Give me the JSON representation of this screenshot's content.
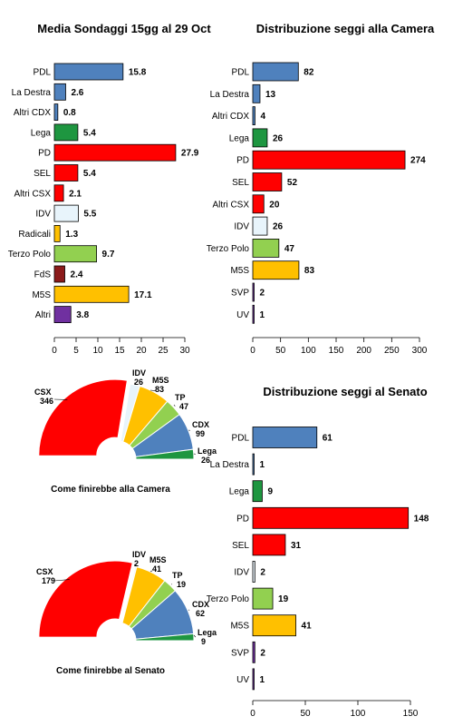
{
  "chart_data": [
    {
      "type": "bar",
      "orientation": "horizontal",
      "title": "Media Sondaggi 15gg al 29 Oct",
      "categories": [
        "PDL",
        "La Destra",
        "Altri CDX",
        "Lega",
        "PD",
        "SEL",
        "Altri CSX",
        "IDV",
        "Radicali",
        "Terzo Polo",
        "FdS",
        "M5S",
        "Altri"
      ],
      "values": [
        15.8,
        2.6,
        0.8,
        5.4,
        27.9,
        5.4,
        2.1,
        5.5,
        1.3,
        9.7,
        2.4,
        17.1,
        3.8
      ],
      "value_labels": [
        "15.8",
        "2.6",
        "0.8",
        "5.4",
        "27.9",
        "5.4",
        "2.1",
        "5.5",
        "1.3",
        "9.7",
        "2.4",
        "17.1",
        "3.8"
      ],
      "colors": [
        "#4f81bd",
        "#4f81bd",
        "#4f81bd",
        "#1e9640",
        "#ff0000",
        "#ff0000",
        "#ff0000",
        "#e8f4fb",
        "#ffc000",
        "#92d050",
        "#8b1a1a",
        "#ffc000",
        "#7030a0"
      ],
      "xlim": [
        0,
        30
      ],
      "xticks": [
        "0",
        "5",
        "10",
        "15",
        "20",
        "25",
        "30"
      ]
    },
    {
      "type": "bar",
      "orientation": "horizontal",
      "title": "Distribuzione seggi alla Camera",
      "categories": [
        "PDL",
        "La Destra",
        "Altri CDX",
        "Lega",
        "PD",
        "SEL",
        "Altri CSX",
        "IDV",
        "Terzo Polo",
        "M5S",
        "SVP",
        "UV"
      ],
      "values": [
        82,
        13,
        4,
        26,
        274,
        52,
        20,
        26,
        47,
        83,
        2,
        1
      ],
      "value_labels": [
        "82",
        "13",
        "4",
        "26",
        "274",
        "52",
        "20",
        "26",
        "47",
        "83",
        "2",
        "1"
      ],
      "colors": [
        "#4f81bd",
        "#4f81bd",
        "#4f81bd",
        "#1e9640",
        "#ff0000",
        "#ff0000",
        "#ff0000",
        "#e8f4fb",
        "#92d050",
        "#ffc000",
        "#7030a0",
        "#7030a0"
      ],
      "xlim": [
        0,
        300
      ],
      "xticks": [
        "0",
        "50",
        "100",
        "150",
        "200",
        "250",
        "300"
      ]
    },
    {
      "type": "bar",
      "orientation": "horizontal",
      "title": "Distribuzione seggi al Senato",
      "categories": [
        "PDL",
        "La Destra",
        "Lega",
        "PD",
        "SEL",
        "IDV",
        "Terzo Polo",
        "M5S",
        "SVP",
        "UV"
      ],
      "values": [
        61,
        1,
        9,
        148,
        31,
        2,
        19,
        41,
        2,
        1
      ],
      "value_labels": [
        "61",
        "1",
        "9",
        "148",
        "31",
        "2",
        "19",
        "41",
        "2",
        "1"
      ],
      "colors": [
        "#4f81bd",
        "#4f81bd",
        "#1e9640",
        "#ff0000",
        "#ff0000",
        "#e8f4fb",
        "#92d050",
        "#ffc000",
        "#7030a0",
        "#7030a0"
      ],
      "xlim": [
        0,
        150
      ],
      "xticks": [
        "0",
        "50",
        "100",
        "150"
      ]
    },
    {
      "type": "pie",
      "subtype": "semicircle",
      "title": "Come finirebbe alla Camera",
      "slices": [
        {
          "name": "CSX",
          "value": 346,
          "color": "#ff0000"
        },
        {
          "name": "IDV",
          "value": 26,
          "color": "#e8f4fb"
        },
        {
          "name": "M5S",
          "value": 83,
          "color": "#ffc000"
        },
        {
          "name": "TP",
          "value": 47,
          "color": "#92d050"
        },
        {
          "name": "CDX",
          "value": 99,
          "color": "#4f81bd"
        },
        {
          "name": "Lega",
          "value": 26,
          "color": "#1e9640"
        }
      ]
    },
    {
      "type": "pie",
      "subtype": "semicircle",
      "title": "Come finirebbe al Senato",
      "slices": [
        {
          "name": "CSX",
          "value": 179,
          "color": "#ff0000"
        },
        {
          "name": "IDV",
          "value": 2,
          "color": "#e8f4fb"
        },
        {
          "name": "M5S",
          "value": 41,
          "color": "#ffc000"
        },
        {
          "name": "TP",
          "value": 19,
          "color": "#92d050"
        },
        {
          "name": "CDX",
          "value": 62,
          "color": "#4f81bd"
        },
        {
          "name": "Lega",
          "value": 9,
          "color": "#1e9640"
        }
      ]
    }
  ]
}
